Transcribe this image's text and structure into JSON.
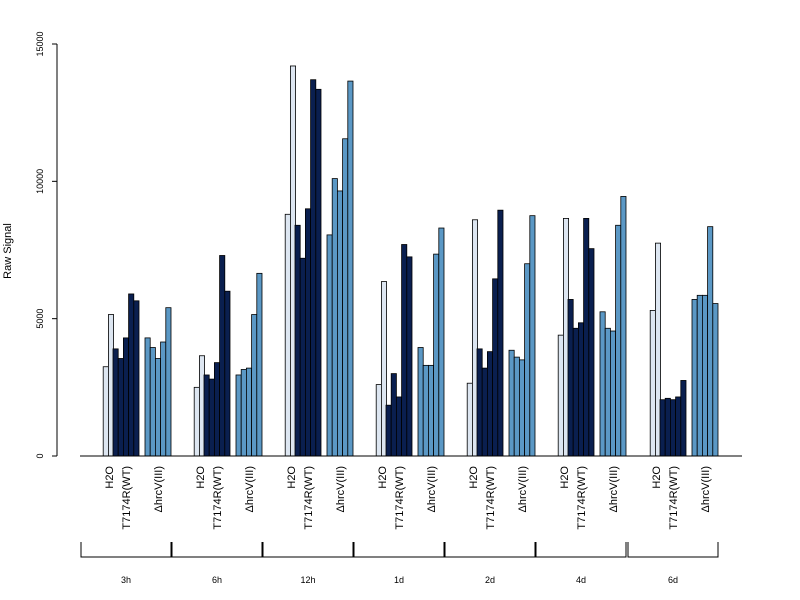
{
  "colors": {
    "H2O": "#dde6f1",
    "T7174R(WT)": "#0a1f4f",
    "ΔhrcV(III)": "#5b98c5",
    "axis": "#000000"
  },
  "chart_data": {
    "type": "bar",
    "title": "",
    "xlabel": "",
    "ylabel": "Raw Signal",
    "ylim": [
      0,
      15000
    ],
    "yticks": [
      0,
      5000,
      10000,
      15000
    ],
    "grid": false,
    "legend": "none",
    "treatments": [
      "H2O",
      "T7174R(WT)",
      "ΔhrcV(III)"
    ],
    "timepoints": [
      {
        "label": "3h",
        "groups": [
          {
            "treatment": "H2O",
            "values": [
              0,
              3250,
              5150
            ]
          },
          {
            "treatment": "T7174R(WT)",
            "values": [
              3900,
              3550,
              4300,
              5900,
              5650
            ]
          },
          {
            "treatment": "ΔhrcV(III)",
            "values": [
              4300,
              3950,
              3550,
              4150,
              5400
            ]
          }
        ]
      },
      {
        "label": "6h",
        "groups": [
          {
            "treatment": "H2O",
            "values": [
              0,
              2500,
              3650
            ]
          },
          {
            "treatment": "T7174R(WT)",
            "values": [
              2950,
              2800,
              3400,
              7300,
              6000
            ]
          },
          {
            "treatment": "ΔhrcV(III)",
            "values": [
              2950,
              3150,
              3200,
              5150,
              6650
            ]
          }
        ]
      },
      {
        "label": "12h",
        "groups": [
          {
            "treatment": "H2O",
            "values": [
              0,
              8800,
              14200
            ]
          },
          {
            "treatment": "T7174R(WT)",
            "values": [
              8400,
              7200,
              9000,
              13700,
              13350
            ]
          },
          {
            "treatment": "ΔhrcV(III)",
            "values": [
              8050,
              10100,
              9650,
              11550,
              13650
            ]
          }
        ]
      },
      {
        "label": "1d",
        "groups": [
          {
            "treatment": "H2O",
            "values": [
              0,
              2600,
              6350
            ]
          },
          {
            "treatment": "T7174R(WT)",
            "values": [
              1850,
              3000,
              2150,
              7700,
              7250
            ]
          },
          {
            "treatment": "ΔhrcV(III)",
            "values": [
              3950,
              3300,
              3300,
              7350,
              8300
            ]
          }
        ]
      },
      {
        "label": "2d",
        "groups": [
          {
            "treatment": "H2O",
            "values": [
              0,
              2650,
              8600
            ]
          },
          {
            "treatment": "T7174R(WT)",
            "values": [
              3900,
              3200,
              3800,
              6450,
              8950
            ]
          },
          {
            "treatment": "ΔhrcV(III)",
            "values": [
              3850,
              3600,
              3500,
              7000,
              8750
            ]
          }
        ]
      },
      {
        "label": "4d",
        "groups": [
          {
            "treatment": "H2O",
            "values": [
              0,
              4400,
              8650
            ]
          },
          {
            "treatment": "T7174R(WT)",
            "values": [
              5700,
              4650,
              4850,
              8650,
              7550
            ]
          },
          {
            "treatment": "ΔhrcV(III)",
            "values": [
              5250,
              4650,
              4550,
              8400,
              9450
            ]
          }
        ]
      },
      {
        "label": "6d",
        "groups": [
          {
            "treatment": "H2O",
            "values": [
              0,
              5300,
              7750
            ]
          },
          {
            "treatment": "T7174R(WT)",
            "values": [
              2050,
              2100,
              2050,
              2150,
              2750
            ]
          },
          {
            "treatment": "ΔhrcV(III)",
            "values": [
              5700,
              5850,
              5850,
              8350,
              5550
            ]
          }
        ]
      }
    ]
  }
}
